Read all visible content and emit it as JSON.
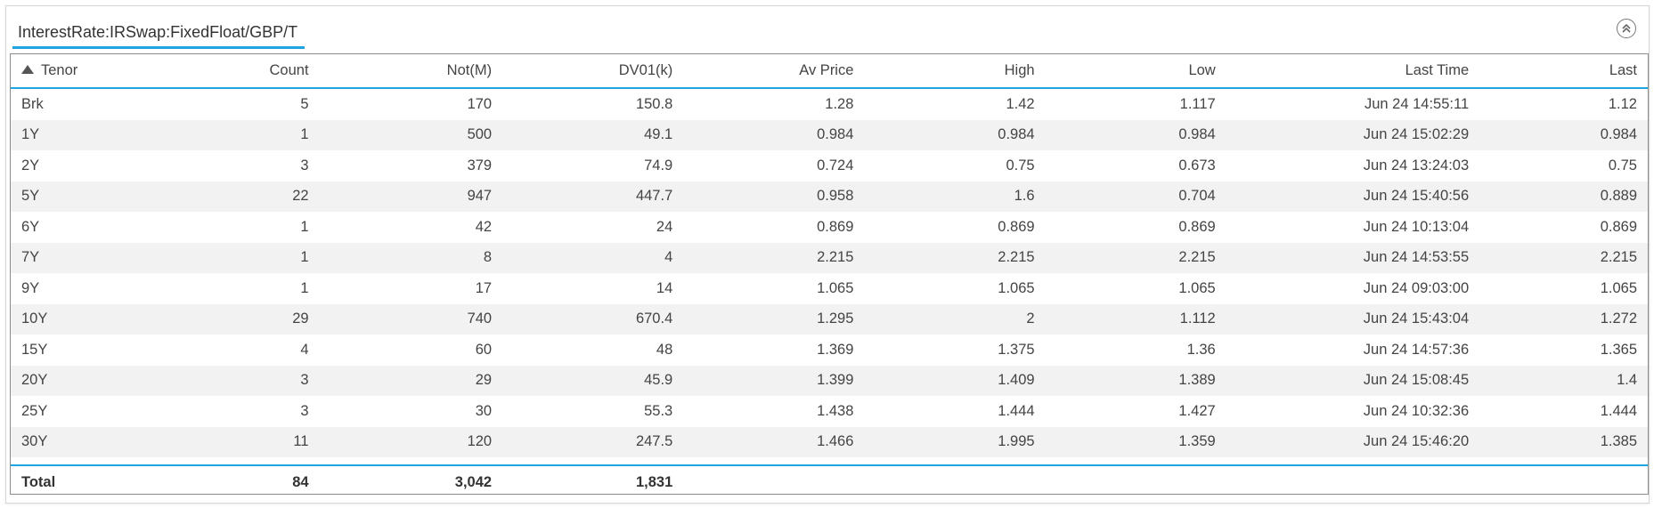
{
  "panel": {
    "tab_title": "InterestRate:IRSwap:FixedFloat/GBP/T",
    "collapse_icon": "collapse-up-icon"
  },
  "table": {
    "columns": [
      "Tenor",
      "Count",
      "Not(M)",
      "DV01(k)",
      "Av Price",
      "High",
      "Low",
      "Last Time",
      "Last"
    ],
    "sort": {
      "column": "Tenor",
      "direction": "ascending"
    },
    "rows": [
      [
        "Brk",
        "5",
        "170",
        "150.8",
        "1.28",
        "1.42",
        "1.117",
        "Jun 24 14:55:11",
        "1.12"
      ],
      [
        "1Y",
        "1",
        "500",
        "49.1",
        "0.984",
        "0.984",
        "0.984",
        "Jun 24 15:02:29",
        "0.984"
      ],
      [
        "2Y",
        "3",
        "379",
        "74.9",
        "0.724",
        "0.75",
        "0.673",
        "Jun 24 13:24:03",
        "0.75"
      ],
      [
        "5Y",
        "22",
        "947",
        "447.7",
        "0.958",
        "1.6",
        "0.704",
        "Jun 24 15:40:56",
        "0.889"
      ],
      [
        "6Y",
        "1",
        "42",
        "24",
        "0.869",
        "0.869",
        "0.869",
        "Jun 24 10:13:04",
        "0.869"
      ],
      [
        "7Y",
        "1",
        "8",
        "4",
        "2.215",
        "2.215",
        "2.215",
        "Jun 24 14:53:55",
        "2.215"
      ],
      [
        "9Y",
        "1",
        "17",
        "14",
        "1.065",
        "1.065",
        "1.065",
        "Jun 24 09:03:00",
        "1.065"
      ],
      [
        "10Y",
        "29",
        "740",
        "670.4",
        "1.295",
        "2",
        "1.112",
        "Jun 24 15:43:04",
        "1.272"
      ],
      [
        "15Y",
        "4",
        "60",
        "48",
        "1.369",
        "1.375",
        "1.36",
        "Jun 24 14:57:36",
        "1.365"
      ],
      [
        "20Y",
        "3",
        "29",
        "45.9",
        "1.399",
        "1.409",
        "1.389",
        "Jun 24 15:08:45",
        "1.4"
      ],
      [
        "25Y",
        "3",
        "30",
        "55.3",
        "1.438",
        "1.444",
        "1.427",
        "Jun 24 10:32:36",
        "1.444"
      ],
      [
        "30Y",
        "11",
        "120",
        "247.5",
        "1.466",
        "1.995",
        "1.359",
        "Jun 24 15:46:20",
        "1.385"
      ]
    ],
    "total": [
      "Total",
      "84",
      "3,042",
      "1,831",
      "",
      "",
      "",
      "",
      ""
    ]
  },
  "colors": {
    "accent": "#1ea5e0",
    "row_stripe": "#f2f2f2",
    "grid_border": "#8c8c8c"
  }
}
